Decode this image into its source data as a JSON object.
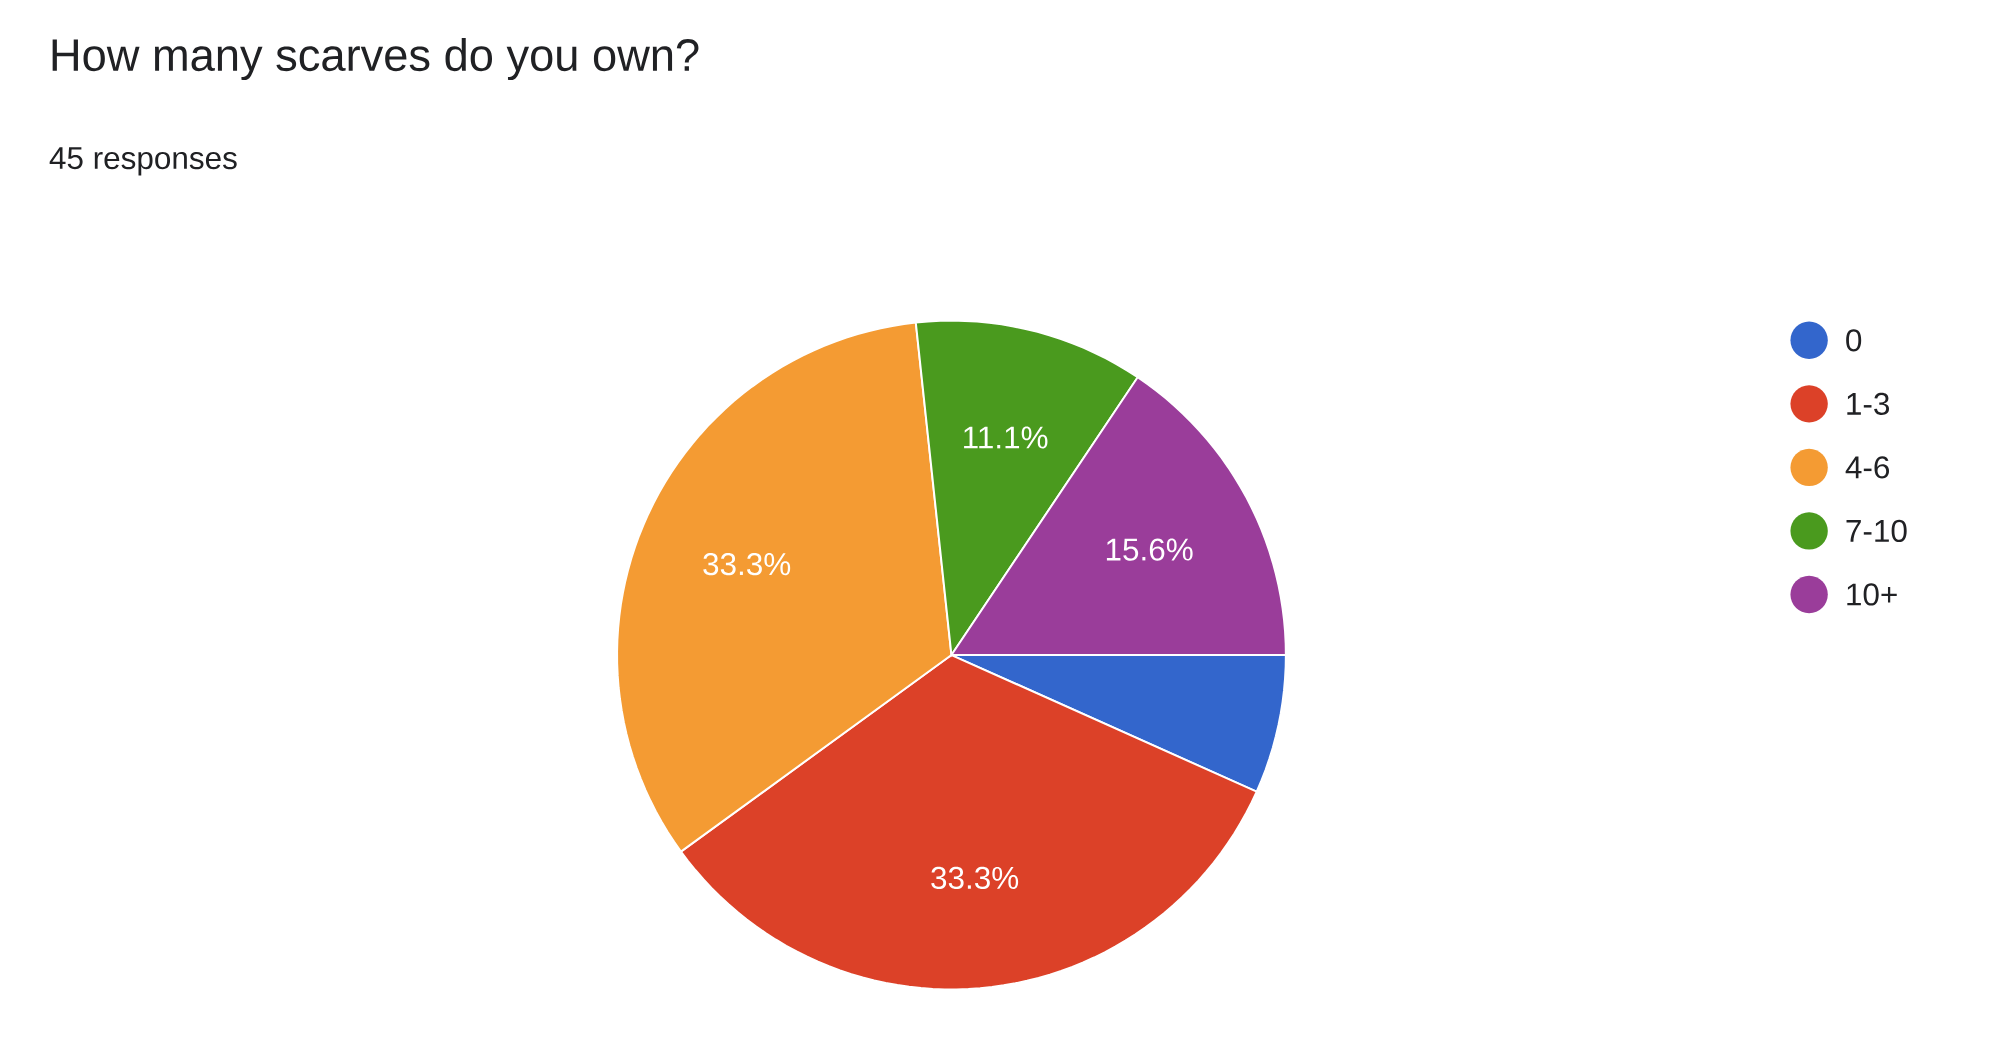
{
  "chart_data": {
    "type": "pie",
    "title": "How many scarves do you own?",
    "subtitle": "45 responses",
    "categories": [
      "0",
      "1-3",
      "4-6",
      "7-10",
      "10+"
    ],
    "values": [
      6.7,
      33.3,
      33.3,
      11.1,
      15.6
    ],
    "colors": [
      "#3366cc",
      "#dc4128",
      "#f49b33",
      "#4a9a1e",
      "#9a3d9a"
    ],
    "value_labels": [
      null,
      "33.3%",
      "33.3%",
      "11.1%",
      "15.6%"
    ],
    "legend": "right"
  }
}
